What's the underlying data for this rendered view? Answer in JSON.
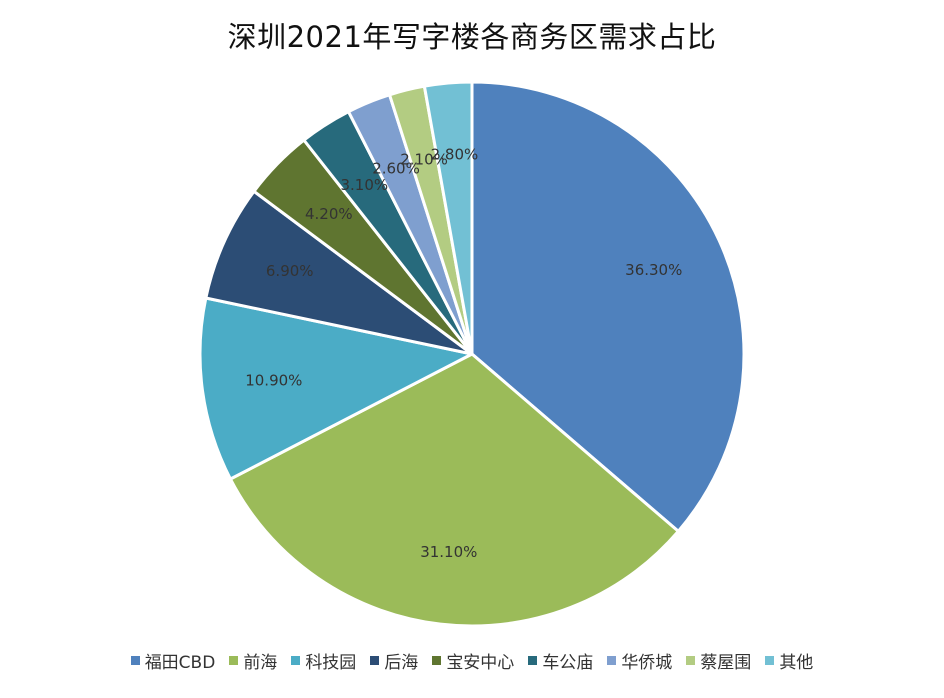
{
  "chart_data": {
    "type": "pie",
    "title": "深圳2021年写字楼各商务区需求占比",
    "start_angle_deg": 0,
    "direction": "clockwise",
    "legend_position": "bottom",
    "slices": [
      {
        "name": "福田CBD",
        "value": 36.3,
        "label": "36.30%",
        "color": "#4F81BD"
      },
      {
        "name": "前海",
        "value": 31.1,
        "label": "31.10%",
        "color": "#9BBB59"
      },
      {
        "name": "科技园",
        "value": 10.9,
        "label": "10.90%",
        "color": "#4BACC6"
      },
      {
        "name": "后海",
        "value": 6.9,
        "label": "6.90%",
        "color": "#2C4D75"
      },
      {
        "name": "宝安中心",
        "value": 4.2,
        "label": "4.20%",
        "color": "#5F7530"
      },
      {
        "name": "车公庙",
        "value": 3.1,
        "label": "3.10%",
        "color": "#276A7C"
      },
      {
        "name": "华侨城",
        "value": 2.6,
        "label": "2.60%",
        "color": "#7F9FCF"
      },
      {
        "name": "蔡屋围",
        "value": 2.1,
        "label": "2.10%",
        "color": "#B3CC82"
      },
      {
        "name": "其他",
        "value": 2.8,
        "label": "2.80%",
        "color": "#72C0D4"
      }
    ]
  }
}
